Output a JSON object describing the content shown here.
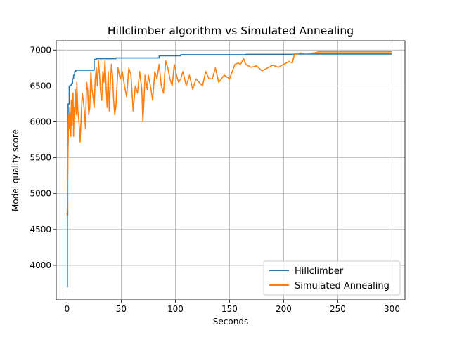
{
  "chart_data": {
    "type": "line",
    "title": "Hillclimber algorithm vs Simulated Annealing",
    "xlabel": "Seconds",
    "ylabel": "Model quality score",
    "xlim": [
      -10,
      312
    ],
    "ylim": [
      3520,
      7130
    ],
    "xticks": [
      0,
      50,
      100,
      150,
      200,
      250,
      300
    ],
    "yticks": [
      4000,
      4500,
      5000,
      5500,
      6000,
      6500,
      7000
    ],
    "grid": true,
    "legend_position": "lower right",
    "series": [
      {
        "name": "Hillclimber",
        "color": "#1f77b4",
        "step": true,
        "x": [
          0,
          0.3,
          0.6,
          1,
          2,
          3,
          4,
          5,
          6,
          7,
          8,
          25,
          27,
          45,
          85,
          105,
          165,
          210,
          300
        ],
        "y": [
          3700,
          4700,
          5700,
          6250,
          6500,
          6510,
          6530,
          6600,
          6650,
          6700,
          6720,
          6870,
          6880,
          6890,
          6920,
          6935,
          6940,
          6945,
          6945
        ]
      },
      {
        "name": "Simulated Annealing",
        "color": "#ff7f0e",
        "step": false,
        "x": [
          0,
          0.3,
          0.6,
          1,
          1.5,
          2,
          2.5,
          3,
          3.5,
          4,
          4.5,
          5,
          5.5,
          6,
          6.5,
          7,
          7.5,
          8,
          8.5,
          9,
          10,
          11,
          12,
          13,
          14,
          15,
          16,
          17,
          18,
          19,
          20,
          21,
          22,
          23,
          24,
          25,
          26,
          27,
          28,
          29,
          30,
          31,
          32,
          33,
          34,
          35,
          36,
          37,
          38,
          39,
          40,
          41,
          42,
          43,
          44,
          45,
          47,
          49,
          51,
          53,
          55,
          57,
          59,
          61,
          63,
          65,
          67,
          69,
          70,
          71,
          72,
          73,
          74,
          75,
          77,
          79,
          81,
          83,
          85,
          87,
          89,
          91,
          93,
          95,
          97,
          99,
          101,
          103,
          105,
          107,
          110,
          113,
          116,
          119,
          122,
          125,
          128,
          131,
          134,
          137,
          140,
          145,
          150,
          155,
          158,
          160,
          163,
          165,
          170,
          175,
          180,
          185,
          190,
          195,
          200,
          205,
          208,
          210,
          212,
          215,
          220,
          225,
          230,
          232,
          240,
          250,
          260,
          270,
          280,
          290,
          300
        ],
        "y": [
          4700,
          4800,
          5300,
          5700,
          6100,
          5900,
          6200,
          6000,
          5800,
          6300,
          5950,
          6150,
          6400,
          5800,
          6200,
          6050,
          6450,
          6300,
          6100,
          6550,
          6150,
          6000,
          5720,
          6050,
          6400,
          6300,
          6150,
          5900,
          6550,
          6450,
          6100,
          6200,
          6700,
          6450,
          6350,
          6200,
          6600,
          6750,
          6500,
          6850,
          6650,
          6400,
          6300,
          6700,
          6550,
          6850,
          6500,
          6200,
          6700,
          6150,
          6550,
          6800,
          6650,
          6300,
          6100,
          6200,
          6750,
          6600,
          6700,
          6500,
          6350,
          6750,
          6650,
          6150,
          6500,
          6400,
          6700,
          6450,
          6000,
          6300,
          6650,
          6550,
          6450,
          6650,
          6500,
          6300,
          6700,
          6600,
          6800,
          6500,
          6400,
          6850,
          6750,
          6600,
          6500,
          6800,
          6650,
          6550,
          6600,
          6700,
          6500,
          6650,
          6450,
          6600,
          6550,
          6500,
          6700,
          6600,
          6600,
          6750,
          6550,
          6650,
          6600,
          6800,
          6820,
          6800,
          6880,
          6800,
          6760,
          6780,
          6710,
          6750,
          6790,
          6760,
          6800,
          6840,
          6820,
          6950,
          6940,
          6960,
          6950,
          6955,
          6965,
          6975,
          6975,
          6975,
          6975,
          6975,
          6975,
          6975,
          6975
        ]
      }
    ]
  }
}
